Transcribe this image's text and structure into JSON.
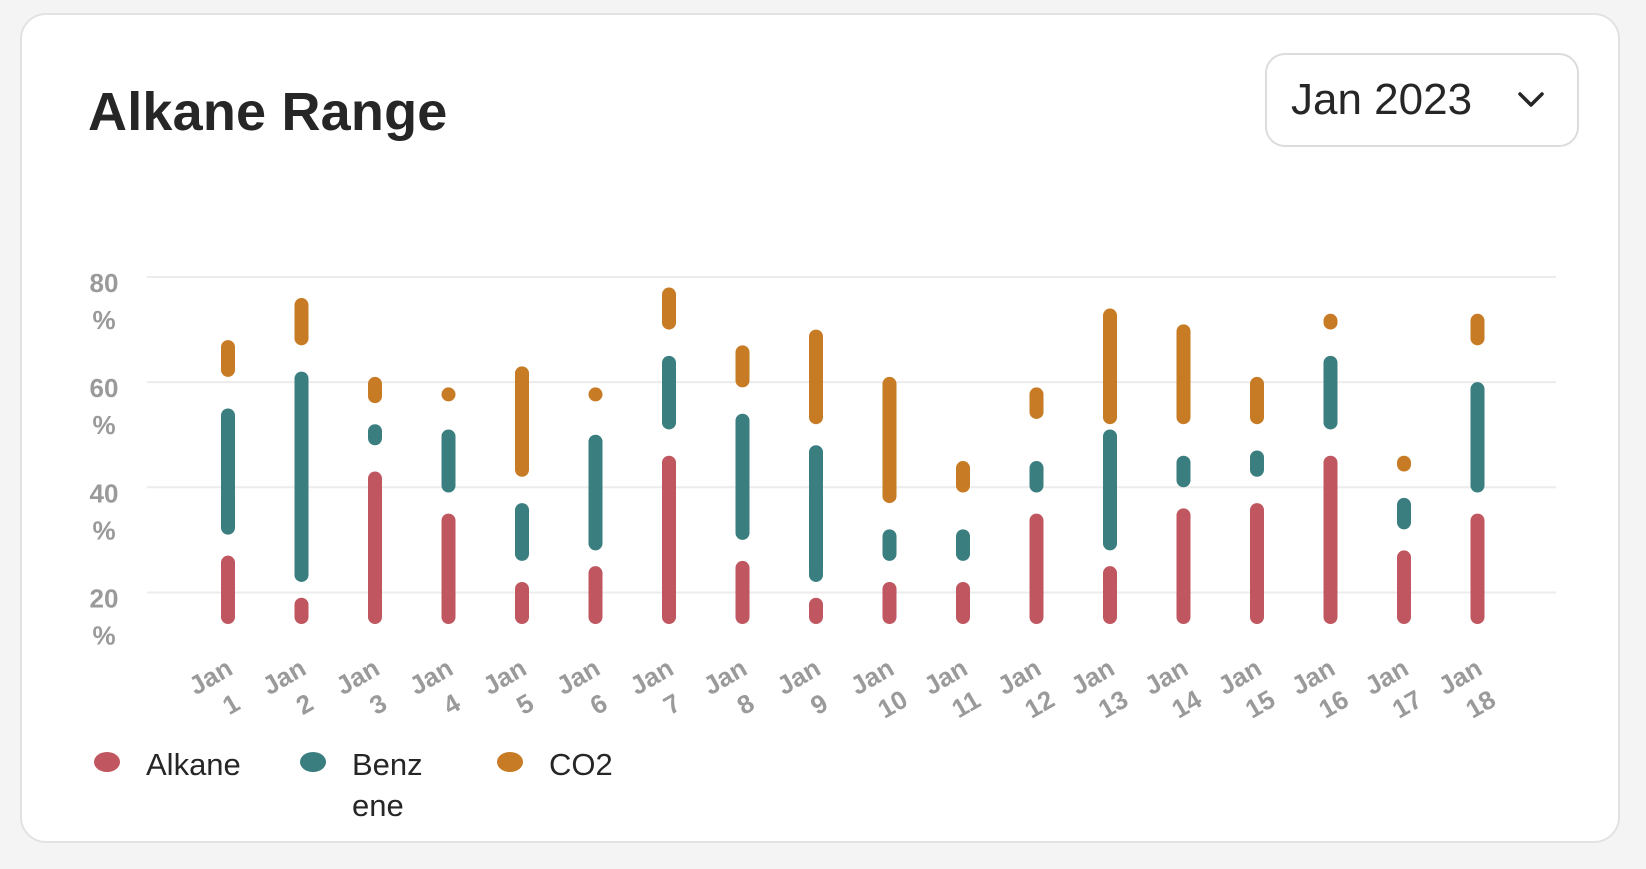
{
  "header": {
    "title": "Alkane Range",
    "month_select": {
      "value": "Jan 2023",
      "icon": "chevron-down-icon"
    }
  },
  "legend": [
    {
      "label": "Alkane",
      "color": "#c0565f"
    },
    {
      "label": "Benz ene",
      "color": "#3a7e80"
    },
    {
      "label": "CO2",
      "color": "#c77b24"
    }
  ],
  "chart_data": {
    "type": "range-bar",
    "title": "Alkane Range",
    "ylim": [
      14,
      80
    ],
    "y_ticks": [
      {
        "value": 80,
        "label": "80 %"
      },
      {
        "value": 60,
        "label": "60 %"
      },
      {
        "value": 40,
        "label": "40 %"
      },
      {
        "value": 20,
        "label": "20 %"
      }
    ],
    "grid": true,
    "legend_position": "bottom-left",
    "categories": [
      "Jan 1",
      "Jan 2",
      "Jan 3",
      "Jan 4",
      "Jan 5",
      "Jan 6",
      "Jan 7",
      "Jan 8",
      "Jan 9",
      "Jan 10",
      "Jan 11",
      "Jan 12",
      "Jan 13",
      "Jan 14",
      "Jan 15",
      "Jan 16",
      "Jan 17",
      "Jan 18"
    ],
    "series": [
      {
        "name": "Alkane",
        "color": "#c0565f",
        "ranges": [
          [
            14,
            27
          ],
          [
            14,
            19
          ],
          [
            14,
            43
          ],
          [
            14,
            35
          ],
          [
            14,
            22
          ],
          [
            14,
            25
          ],
          [
            14,
            46
          ],
          [
            14,
            26
          ],
          [
            14,
            19
          ],
          [
            14,
            22
          ],
          [
            14,
            22
          ],
          [
            14,
            35
          ],
          [
            14,
            25
          ],
          [
            14,
            36
          ],
          [
            14,
            37
          ],
          [
            14,
            46
          ],
          [
            14,
            28
          ],
          [
            14,
            35
          ]
        ]
      },
      {
        "name": "Benz ene",
        "color": "#3a7e80",
        "ranges": [
          [
            31,
            55
          ],
          [
            22,
            62
          ],
          [
            48,
            52
          ],
          [
            39,
            51
          ],
          [
            26,
            37
          ],
          [
            28,
            50
          ],
          [
            51,
            65
          ],
          [
            30,
            54
          ],
          [
            22,
            48
          ],
          [
            26,
            32
          ],
          [
            26,
            32
          ],
          [
            39,
            45
          ],
          [
            28,
            51
          ],
          [
            40,
            46
          ],
          [
            42,
            47
          ],
          [
            51,
            65
          ],
          [
            32,
            38
          ],
          [
            39,
            60
          ]
        ]
      },
      {
        "name": "CO2",
        "color": "#c77b24",
        "ranges": [
          [
            61,
            68
          ],
          [
            67,
            76
          ],
          [
            56,
            61
          ],
          [
            57,
            59
          ],
          [
            42,
            63
          ],
          [
            57,
            59
          ],
          [
            70,
            78
          ],
          [
            59,
            67
          ],
          [
            52,
            70
          ],
          [
            37,
            61
          ],
          [
            39,
            45
          ],
          [
            53,
            59
          ],
          [
            52,
            74
          ],
          [
            52,
            71
          ],
          [
            52,
            61
          ],
          [
            70,
            73
          ],
          [
            43,
            46
          ],
          [
            67,
            73
          ]
        ]
      }
    ]
  }
}
